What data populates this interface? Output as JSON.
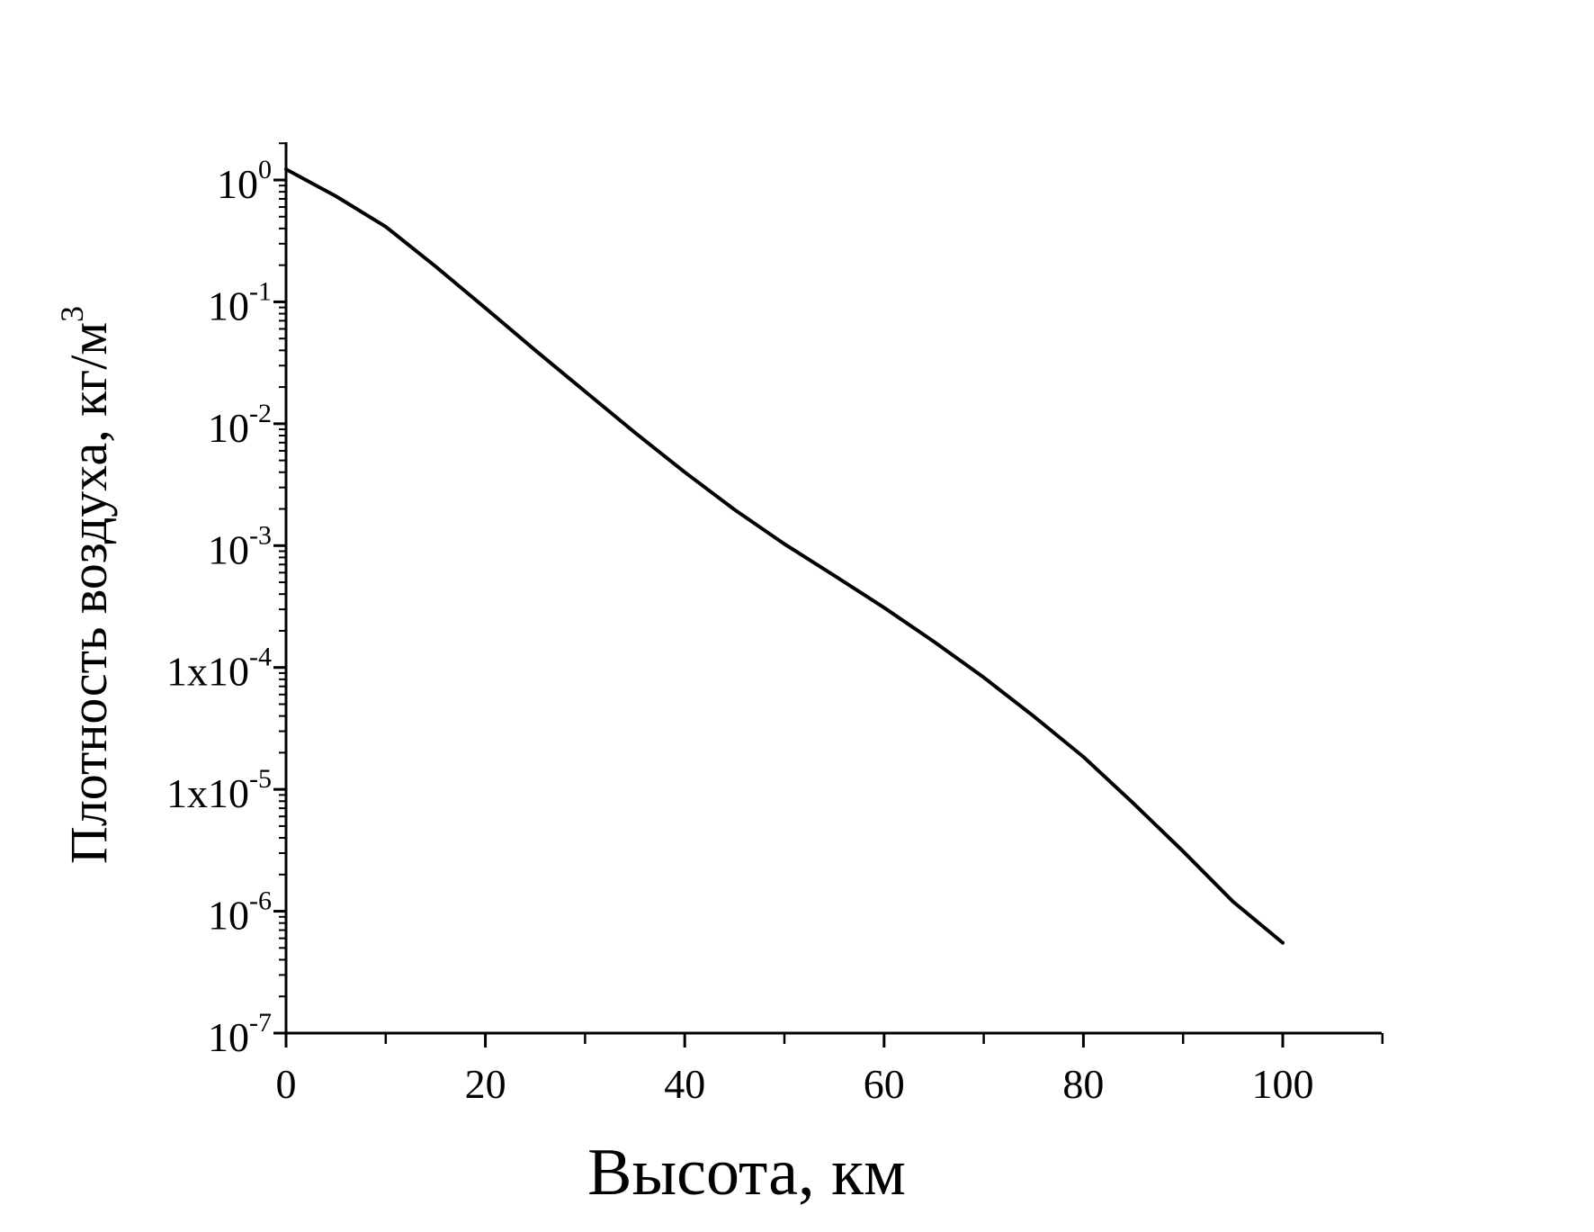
{
  "chart_data": {
    "type": "line",
    "title": "",
    "xlabel": "Высота,  км",
    "ylabel": "Плотность воздуха, кг/м",
    "ylabel_superscript": "3",
    "xscale": "linear",
    "yscale": "log",
    "xlim": [
      0,
      110
    ],
    "ylim": [
      1e-07,
      2
    ],
    "grid": false,
    "legend": "none",
    "line_color": "#000000",
    "x_ticks": [
      {
        "value": 0,
        "label": "0"
      },
      {
        "value": 20,
        "label": "20"
      },
      {
        "value": 40,
        "label": "40"
      },
      {
        "value": 60,
        "label": "60"
      },
      {
        "value": 80,
        "label": "80"
      },
      {
        "value": 100,
        "label": "100"
      }
    ],
    "x_minor_ticks": [
      10,
      30,
      50,
      70,
      90,
      110
    ],
    "y_ticks": [
      {
        "value": 1,
        "base": "10",
        "exp": "0"
      },
      {
        "value": 0.1,
        "base": "10",
        "exp": "-1"
      },
      {
        "value": 0.01,
        "base": "10",
        "exp": "-2"
      },
      {
        "value": 0.001,
        "base": "10",
        "exp": "-3"
      },
      {
        "value": 0.0001,
        "base": "1x10",
        "exp": "-4"
      },
      {
        "value": 1e-05,
        "base": "1x10",
        "exp": "-5"
      },
      {
        "value": 1e-06,
        "base": "10",
        "exp": "-6"
      },
      {
        "value": 1e-07,
        "base": "10",
        "exp": "-7"
      }
    ],
    "series": [
      {
        "x": [
          0,
          5,
          10,
          15,
          20,
          25,
          30,
          35,
          40,
          45,
          50,
          55,
          60,
          65,
          70,
          75,
          80,
          85,
          90,
          95,
          100
        ],
        "y": [
          1.225,
          0.736,
          0.414,
          0.195,
          0.0889,
          0.0401,
          0.0184,
          0.00846,
          0.004,
          0.00197,
          0.00103,
          0.000568,
          0.00031,
          0.000163,
          8.28e-05,
          3.99e-05,
          1.85e-05,
          7.7e-06,
          3.1e-06,
          1.2e-06,
          5.5e-07
        ]
      }
    ]
  }
}
